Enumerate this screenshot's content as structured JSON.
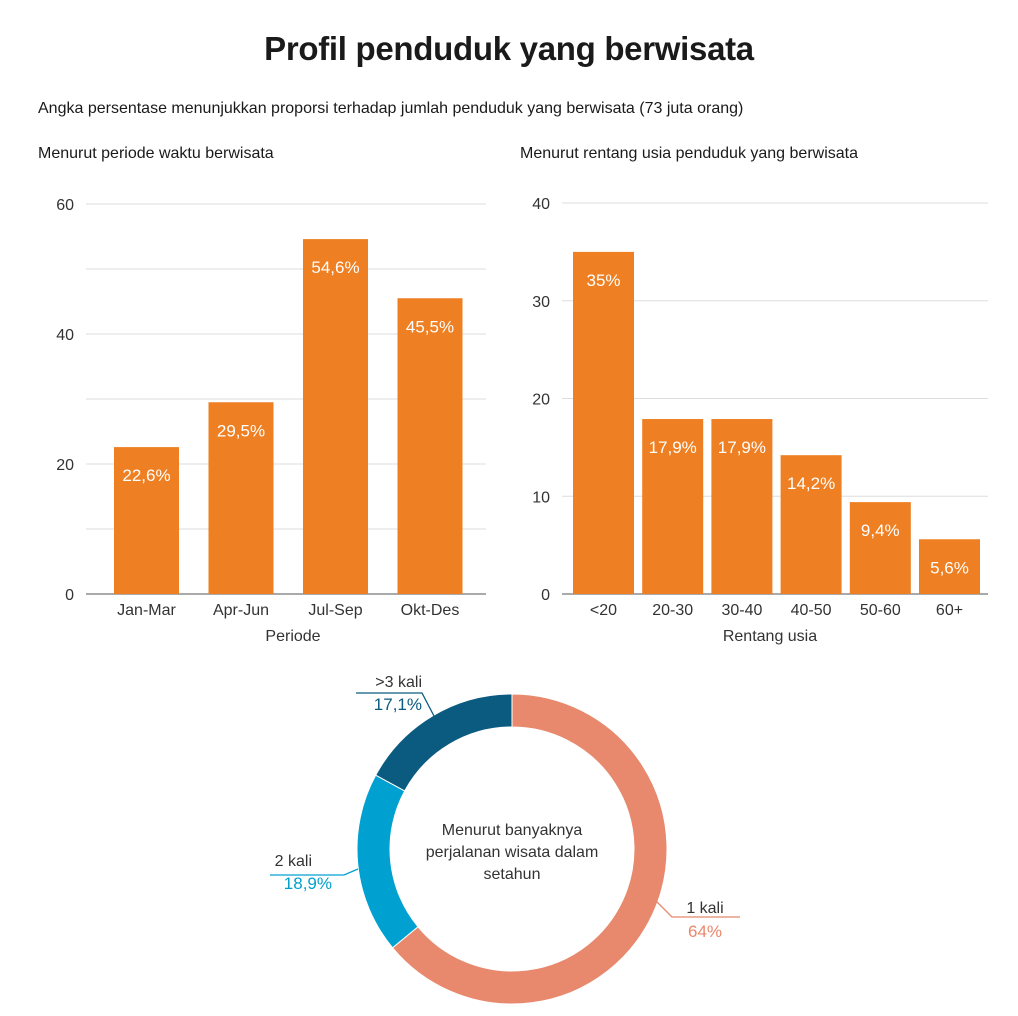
{
  "title": "Profil penduduk yang berwisata",
  "subtitle": "Angka persentase menunjukkan proporsi terhadap jumlah penduduk yang berwisata (73 juta orang)",
  "colors": {
    "bar": "#ee7f22",
    "grid": "#dddddd",
    "donut_1": "#e8886c",
    "donut_2": "#00a0d0",
    "donut_3": "#0b5a80"
  },
  "chart_data": [
    {
      "type": "bar",
      "title": "Menurut periode waktu berwisata",
      "xlabel": "Periode",
      "ylabel": "",
      "ylim": [
        0,
        60
      ],
      "yticks": [
        "0",
        "20",
        "40",
        "60"
      ],
      "grid": true,
      "categories": [
        "Jan-Mar",
        "Apr-Jun",
        "Jul-Sep",
        "Okt-Des"
      ],
      "values": [
        22.6,
        29.5,
        54.6,
        45.5
      ],
      "labels": [
        "22,6%",
        "29,5%",
        "54,6%",
        "45,5%"
      ]
    },
    {
      "type": "bar",
      "title": "Menurut rentang usia penduduk yang berwisata",
      "xlabel": "Rentang usia",
      "ylabel": "",
      "ylim": [
        0,
        40
      ],
      "yticks": [
        "0",
        "10",
        "20",
        "30",
        "40"
      ],
      "grid": true,
      "categories": [
        "<20",
        "20-30",
        "30-40",
        "40-50",
        "50-60",
        "60+"
      ],
      "values": [
        35,
        17.9,
        17.9,
        14.2,
        9.4,
        5.6
      ],
      "labels": [
        "35%",
        "17,9%",
        "17,9%",
        "14,2%",
        "9,4%",
        "5,6%"
      ]
    },
    {
      "type": "pie",
      "title": "Menurut banyaknya perjalanan wisata dalam setahun",
      "title_lines": [
        "Menurut banyaknya",
        "perjalanan wisata dalam",
        "setahun"
      ],
      "slices": [
        {
          "name": "1 kali",
          "value": 64,
          "label": "64%"
        },
        {
          "name": "2 kali",
          "value": 18.9,
          "label": "18,9%"
        },
        {
          "name": ">3 kali",
          "value": 17.1,
          "label": "17,1%"
        }
      ]
    }
  ]
}
